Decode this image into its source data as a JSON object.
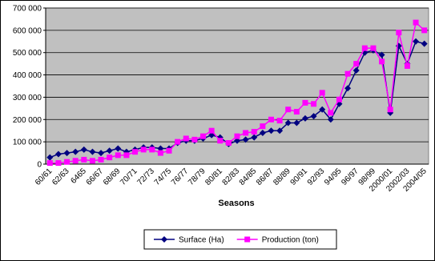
{
  "chart_data": {
    "type": "line",
    "x_label": "Seasons",
    "categories": [
      "60/61",
      null,
      "62/63",
      null,
      "6465",
      null,
      "66/67",
      null,
      "68/69",
      null,
      "70/71",
      null,
      "72/73",
      null,
      "74/75",
      null,
      "76/77",
      null,
      "78/79",
      null,
      "80/81",
      null,
      "82/83",
      null,
      "84/85",
      null,
      "86/87",
      null,
      "88/89",
      null,
      "90/91",
      null,
      "92/93",
      null,
      "94/95",
      null,
      "96/97",
      null,
      "98/99",
      null,
      "2000/01",
      null,
      "2002/03",
      null,
      "2004/05"
    ],
    "series": [
      {
        "name": "Surface (Ha)",
        "color": "#000080",
        "marker": "diamond",
        "values": [
          30000,
          45000,
          50000,
          55000,
          65000,
          55000,
          50000,
          60000,
          70000,
          55000,
          65000,
          75000,
          75000,
          70000,
          70000,
          95000,
          105000,
          105000,
          115000,
          130000,
          120000,
          90000,
          105000,
          110000,
          120000,
          140000,
          150000,
          150000,
          185000,
          185000,
          205000,
          215000,
          245000,
          200000,
          270000,
          340000,
          420000,
          500000,
          510000,
          490000,
          230000,
          530000,
          450000,
          550000,
          540000
        ]
      },
      {
        "name": "Production  (ton)",
        "color": "#ff00ff",
        "marker": "square",
        "values": [
          5000,
          5000,
          10000,
          15000,
          20000,
          15000,
          20000,
          30000,
          40000,
          40000,
          55000,
          65000,
          65000,
          50000,
          60000,
          100000,
          115000,
          110000,
          125000,
          150000,
          105000,
          95000,
          125000,
          140000,
          145000,
          170000,
          200000,
          195000,
          245000,
          235000,
          275000,
          270000,
          320000,
          230000,
          290000,
          405000,
          450000,
          520000,
          520000,
          460000,
          245000,
          590000,
          440000,
          635000,
          600000
        ]
      }
    ],
    "ylim": [
      0,
      700000
    ],
    "yticks": [
      0,
      {
        "value": 100000,
        "label": "100 000"
      },
      {
        "value": 200000,
        "label": "200 000"
      },
      {
        "value": 300000,
        "label": "300 000"
      },
      {
        "value": 400000,
        "label": "400 000"
      },
      {
        "value": 500000,
        "label": "500 000"
      },
      {
        "value": 600000,
        "label": "600 000"
      },
      {
        "value": 700000,
        "label": "700 000"
      }
    ],
    "grid": true,
    "plot_background": "#c0c0c0",
    "legend": "bottom"
  }
}
